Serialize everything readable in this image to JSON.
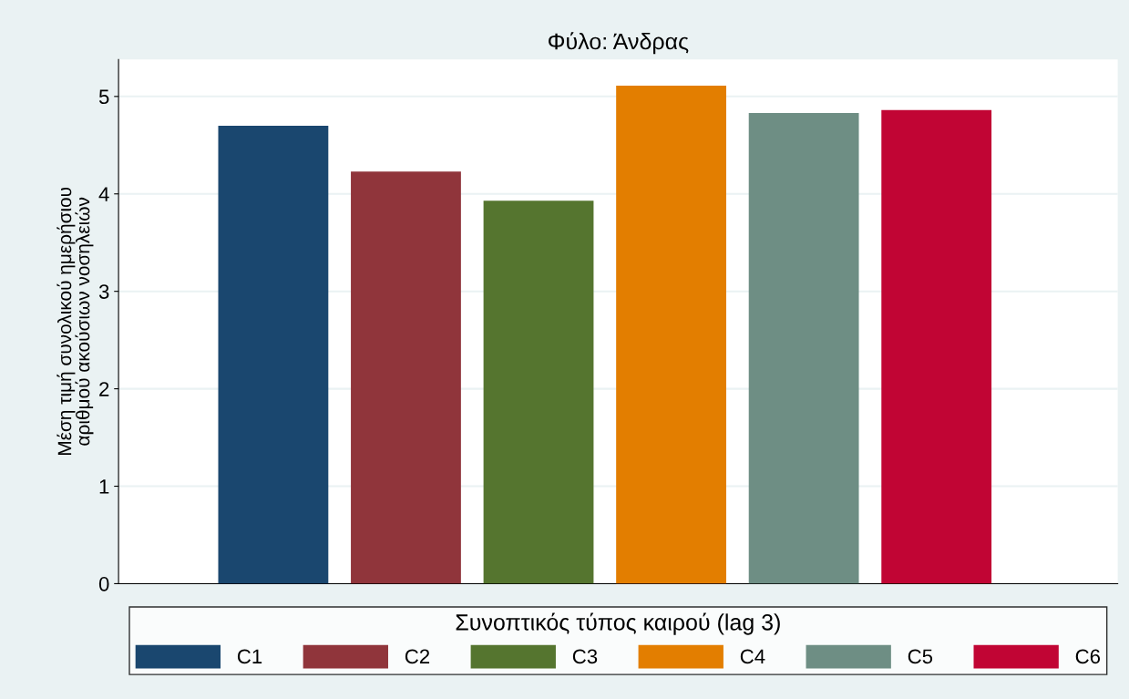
{
  "chart_data": {
    "type": "bar",
    "title": "Φύλο: Άνδρας",
    "ylabel": "Μέση τιμή συνολικού ημερήσιου\nαριθμού ακούσιων νοσηλειών",
    "legend_title": "Συνοπτικός τύπος καιρού (lag 3)",
    "categories": [
      null
    ],
    "series": [
      {
        "name": "C1",
        "color": "#1a476f",
        "values": [
          4.7
        ]
      },
      {
        "name": "C2",
        "color": "#90353b",
        "values": [
          4.23
        ]
      },
      {
        "name": "C3",
        "color": "#55752f",
        "values": [
          3.93
        ]
      },
      {
        "name": "C4",
        "color": "#e37e00",
        "values": [
          5.11
        ]
      },
      {
        "name": "C5",
        "color": "#6e8e84",
        "values": [
          4.83
        ]
      },
      {
        "name": "C6",
        "color": "#c10534",
        "values": [
          4.86
        ]
      }
    ],
    "ylim": [
      0,
      5.38
    ],
    "yticks": [
      0,
      1,
      2,
      3,
      4,
      5
    ],
    "grid": "y",
    "legend": "bottom"
  }
}
